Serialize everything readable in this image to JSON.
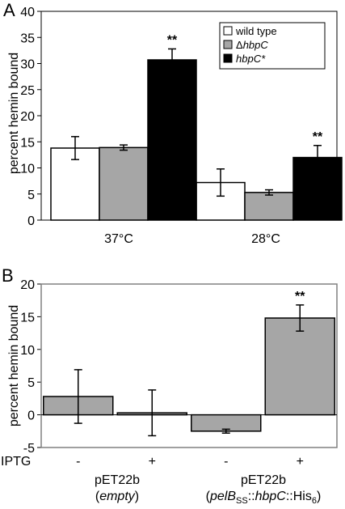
{
  "chart_data": [
    {
      "type": "bar",
      "panel_label": "A",
      "ylabel": "percent hemin bound",
      "ylim": [
        0,
        40
      ],
      "yticks": [
        "0",
        "5",
        "10",
        "15",
        "20",
        "25",
        "30",
        "35",
        "40"
      ],
      "categories": [
        "37°C",
        "28°C"
      ],
      "legend": {
        "placement": "top-right",
        "entries": [
          {
            "prefix": "",
            "text": "wild type",
            "italic": false
          },
          {
            "prefix": "Δ",
            "text": "hbpC",
            "italic": true
          },
          {
            "prefix": "",
            "text": "hbpC*",
            "italic": true
          }
        ]
      },
      "series": [
        {
          "color": "#ffffff",
          "values": [
            13.8,
            7.2
          ],
          "errors": [
            2.2,
            2.6
          ]
        },
        {
          "color": "#a6a6a6",
          "values": [
            13.9,
            5.3
          ],
          "errors": [
            0.5,
            0.5
          ]
        },
        {
          "color": "#000000",
          "values": [
            30.7,
            12.0
          ],
          "errors": [
            2.1,
            2.3
          ]
        }
      ],
      "annotations": [
        {
          "text": "**",
          "series": 2,
          "category": 0
        },
        {
          "text": "**",
          "series": 2,
          "category": 1
        }
      ]
    },
    {
      "type": "bar",
      "panel_label": "B",
      "ylabel": "percent hemin bound",
      "ylim": [
        -5,
        20
      ],
      "yticks": [
        "-5",
        "0",
        "5",
        "10",
        "15",
        "20"
      ],
      "bar_color": "#a6a6a6",
      "row_label": "IPTG",
      "iptg": [
        "-",
        "+",
        "-",
        "+"
      ],
      "values": [
        2.8,
        0.3,
        -2.5,
        14.8
      ],
      "errors": [
        4.1,
        3.5,
        0.3,
        2.0
      ],
      "groups": [
        {
          "line1": "pET22b",
          "line2_open": "(",
          "line2_italic": "empty",
          "line2_close": ")"
        },
        {
          "line1": "pET22b",
          "g2_open": "(",
          "g2_a": "pelB",
          "g2_sub": "SS",
          "g2_b": "::",
          "g2_c": "hbpC",
          "g2_d": "::His",
          "g2_sub2": "6",
          "g2_close": ")"
        }
      ],
      "annotations": [
        {
          "text": "**",
          "bar": 3
        }
      ]
    }
  ]
}
